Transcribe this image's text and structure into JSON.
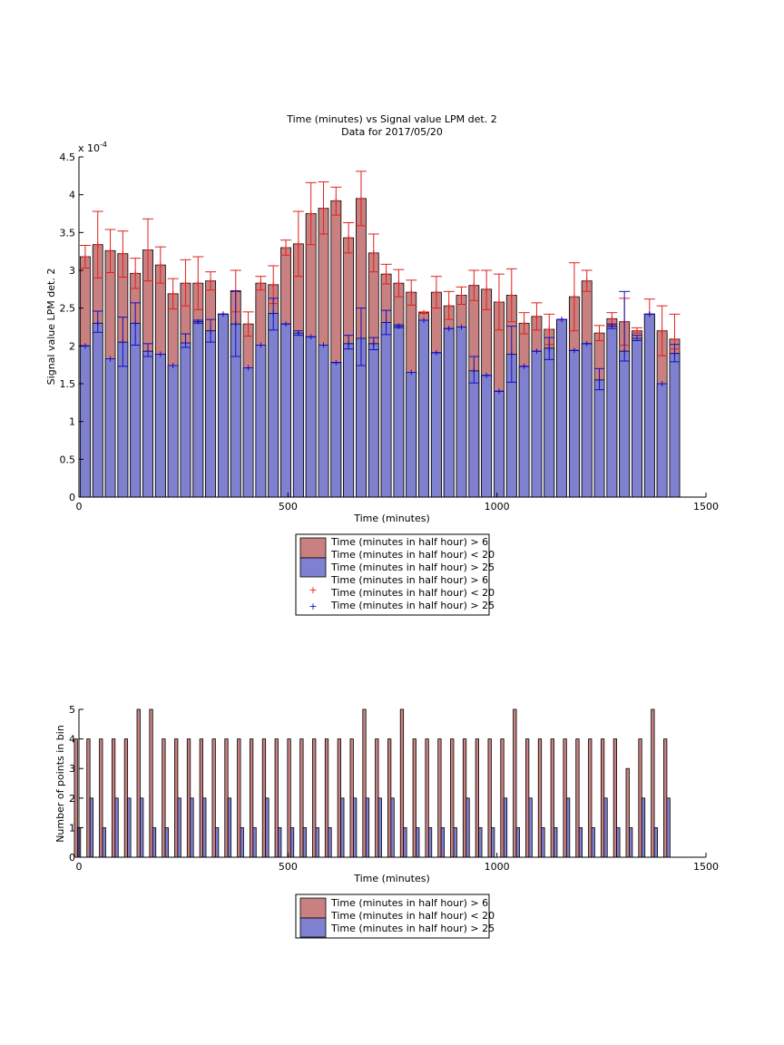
{
  "colors": {
    "red_fill": "#c98080",
    "blue_fill": "#8080d0",
    "red_err": "#e02020",
    "blue_err": "#1010c0",
    "axis": "#000000"
  },
  "chart_data": [
    {
      "type": "bar",
      "title": "Time (minutes) vs Signal value LPM det. 2",
      "subtitle": "Data for 2017/05/20",
      "xlabel": "Time (minutes)",
      "ylabel": "Signal value LPM det. 2",
      "exponent_label": "x 10",
      "exponent_power": "-4",
      "xlim": [
        0,
        1500
      ],
      "ylim": [
        0,
        4.5
      ],
      "ylim_scale": "1e-4",
      "xticks": [
        "0",
        "500",
        "1000",
        "1500"
      ],
      "yticks": [
        "0",
        "0.5",
        "1",
        "1.5",
        "2",
        "2.5",
        "3",
        "3.5",
        "4",
        "4.5"
      ],
      "legend": {
        "placement": "below",
        "entries": [
          "Time (minutes in half hour) > 6",
          "Time (minutes in half hour) < 20",
          "Time (minutes in half hour) > 25",
          "Time (minutes in half hour) > 6",
          "Time (minutes in half hour) < 20",
          "Time (minutes in half hour) > 25"
        ]
      },
      "x": [
        15,
        45,
        75,
        105,
        135,
        165,
        195,
        225,
        255,
        285,
        315,
        345,
        375,
        405,
        435,
        465,
        495,
        525,
        555,
        585,
        615,
        645,
        675,
        705,
        735,
        765,
        795,
        825,
        855,
        885,
        915,
        945,
        975,
        1005,
        1035,
        1065,
        1095,
        1125,
        1155,
        1185,
        1215,
        1245,
        1275,
        1305,
        1335,
        1365,
        1395,
        1425
      ],
      "series": [
        {
          "name": "Time (minutes in half hour) > 6 / < 20",
          "values": [
            3.18,
            3.34,
            3.26,
            3.22,
            2.96,
            3.27,
            3.07,
            2.69,
            2.83,
            2.83,
            2.86,
            2.42,
            2.72,
            2.29,
            2.83,
            2.81,
            3.3,
            3.35,
            3.75,
            3.82,
            3.92,
            3.43,
            3.95,
            3.23,
            2.95,
            2.83,
            2.71,
            2.44,
            2.71,
            2.53,
            2.67,
            2.8,
            2.75,
            2.58,
            2.67,
            2.3,
            2.39,
            2.22,
            2.35,
            2.65,
            2.86,
            2.17,
            2.36,
            2.32,
            2.2,
            2.42,
            2.2,
            2.09
          ],
          "err_low": [
            3.03,
            2.9,
            2.97,
            2.91,
            2.76,
            2.86,
            2.83,
            2.49,
            2.53,
            2.48,
            2.74,
            2.42,
            2.45,
            2.13,
            2.74,
            2.56,
            3.2,
            2.92,
            3.34,
            3.48,
            3.73,
            3.23,
            3.59,
            2.98,
            2.82,
            2.65,
            2.54,
            2.43,
            2.5,
            2.35,
            2.55,
            2.6,
            2.48,
            2.21,
            2.32,
            2.16,
            2.21,
            2.02,
            2.35,
            2.2,
            2.72,
            2.07,
            2.28,
            2.01,
            2.17,
            2.42,
            1.87,
            1.96
          ],
          "err_high": [
            3.33,
            3.78,
            3.54,
            3.52,
            3.16,
            3.68,
            3.31,
            2.89,
            3.14,
            3.18,
            2.98,
            2.42,
            3.0,
            2.45,
            2.92,
            3.06,
            3.4,
            3.78,
            4.16,
            4.17,
            4.1,
            3.63,
            4.31,
            3.48,
            3.08,
            3.01,
            2.87,
            2.45,
            2.92,
            2.72,
            2.78,
            3.0,
            3.0,
            2.95,
            3.02,
            2.44,
            2.57,
            2.42,
            2.35,
            3.1,
            3.0,
            2.27,
            2.44,
            2.63,
            2.24,
            2.62,
            2.53,
            2.42
          ]
        },
        {
          "name": "Time (minutes in half hour) > 25",
          "values": [
            2.0,
            2.3,
            1.83,
            2.05,
            2.3,
            1.93,
            1.89,
            1.74,
            2.04,
            2.32,
            2.2,
            2.42,
            2.29,
            1.71,
            2.01,
            2.43,
            2.29,
            2.17,
            2.12,
            2.01,
            1.78,
            2.03,
            2.1,
            2.03,
            2.31,
            2.26,
            1.65,
            2.34,
            1.91,
            2.23,
            2.25,
            1.67,
            1.61,
            1.4,
            1.89,
            1.73,
            1.93,
            1.97,
            2.35,
            1.94,
            2.03,
            1.55,
            2.26,
            1.93,
            2.1,
            2.42,
            1.5,
            1.9
          ],
          "err_low": [
            2.0,
            2.18,
            1.83,
            1.73,
            2.01,
            1.86,
            1.89,
            1.74,
            1.98,
            2.3,
            2.05,
            2.42,
            1.86,
            1.71,
            2.01,
            2.21,
            2.29,
            2.14,
            2.12,
            2.01,
            1.78,
            1.96,
            1.74,
            1.95,
            2.15,
            2.24,
            1.65,
            2.34,
            1.91,
            2.23,
            2.25,
            1.51,
            1.61,
            1.4,
            1.52,
            1.73,
            1.93,
            1.82,
            2.35,
            1.94,
            2.03,
            1.42,
            2.23,
            1.8,
            2.07,
            2.42,
            1.5,
            1.79
          ],
          "err_high": [
            2.0,
            2.46,
            1.83,
            2.38,
            2.57,
            2.03,
            1.89,
            1.74,
            2.16,
            2.34,
            2.35,
            2.42,
            2.73,
            1.71,
            2.01,
            2.63,
            2.29,
            2.2,
            2.12,
            2.01,
            1.78,
            2.14,
            2.5,
            2.11,
            2.47,
            2.28,
            1.65,
            2.34,
            1.91,
            2.23,
            2.25,
            1.86,
            1.61,
            1.4,
            2.26,
            1.73,
            1.93,
            2.11,
            2.35,
            1.94,
            2.03,
            1.7,
            2.29,
            2.72,
            2.14,
            2.42,
            1.5,
            2.02
          ]
        }
      ]
    },
    {
      "type": "bar",
      "title": "",
      "xlabel": "Time (minutes)",
      "ylabel": "Number of points in bin",
      "xlim": [
        0,
        1500
      ],
      "ylim": [
        0,
        5
      ],
      "xticks": [
        "0",
        "500",
        "1000",
        "1500"
      ],
      "yticks": [
        "0",
        "1",
        "2",
        "3",
        "4",
        "5"
      ],
      "legend": {
        "placement": "below",
        "entries": [
          "Time (minutes in half hour) > 6",
          "Time (minutes in half hour) < 20",
          "Time (minutes in half hour) > 25"
        ]
      },
      "x": [
        15,
        45,
        75,
        105,
        135,
        165,
        195,
        225,
        255,
        285,
        315,
        345,
        375,
        405,
        435,
        465,
        495,
        525,
        555,
        585,
        615,
        645,
        675,
        705,
        735,
        765,
        795,
        825,
        855,
        885,
        915,
        945,
        975,
        1005,
        1035,
        1065,
        1095,
        1125,
        1155,
        1185,
        1215,
        1245,
        1275,
        1305,
        1335,
        1365,
        1395,
        1425
      ],
      "series": [
        {
          "name": "Time (minutes in half hour) > 6 / < 20",
          "values": [
            4,
            4,
            4,
            4,
            4,
            5,
            5,
            4,
            4,
            4,
            4,
            4,
            4,
            4,
            4,
            4,
            4,
            4,
            4,
            4,
            4,
            4,
            4,
            5,
            4,
            4,
            5,
            4,
            4,
            4,
            4,
            4,
            4,
            4,
            4,
            5,
            4,
            4,
            4,
            4,
            4,
            4,
            4,
            4,
            3,
            4,
            5,
            4
          ]
        },
        {
          "name": "Time (minutes in half hour) > 25",
          "values": [
            1,
            2,
            1,
            2,
            2,
            2,
            1,
            1,
            2,
            2,
            2,
            1,
            2,
            1,
            1,
            2,
            1,
            1,
            1,
            1,
            1,
            2,
            2,
            2,
            2,
            2,
            1,
            1,
            1,
            1,
            1,
            2,
            1,
            1,
            2,
            1,
            2,
            1,
            1,
            2,
            1,
            1,
            2,
            1,
            1,
            2,
            1,
            2
          ]
        }
      ]
    }
  ]
}
